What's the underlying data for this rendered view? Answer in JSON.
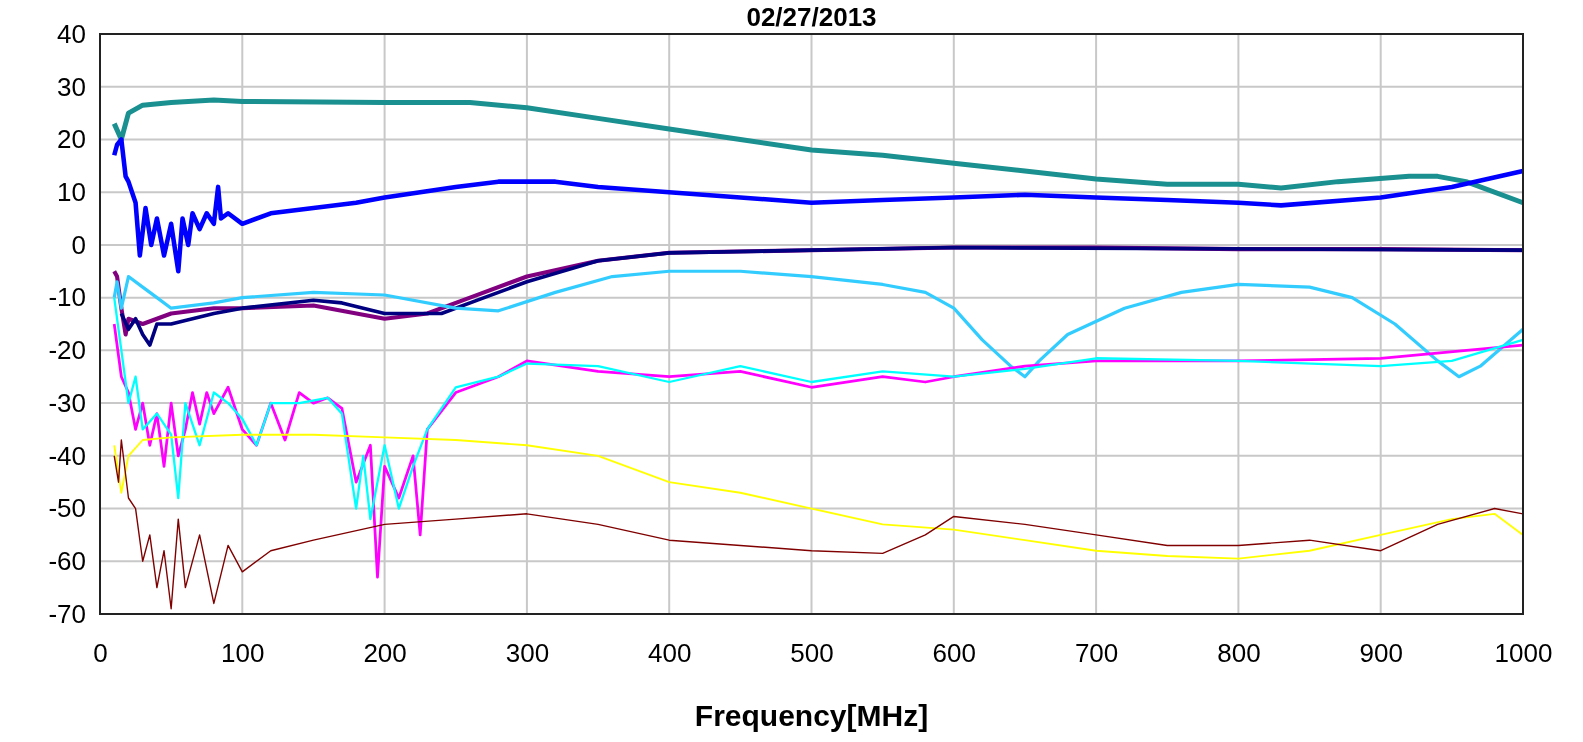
{
  "chart_data": {
    "type": "line",
    "title": "02/27/2013",
    "xlabel": "Frequency[MHz]",
    "xlim": [
      0,
      1000
    ],
    "xticks": [
      0,
      100,
      200,
      300,
      400,
      500,
      600,
      700,
      800,
      900,
      1000
    ],
    "ylim": [
      -70,
      40
    ],
    "yticks": [
      -70,
      -60,
      -50,
      -40,
      -30,
      -20,
      -10,
      0,
      10,
      20,
      30,
      40
    ],
    "grid": true,
    "marker": "none",
    "line_style": "solid",
    "series": [
      {
        "color": "#1a9090",
        "x": [
          10,
          15,
          20,
          30,
          50,
          80,
          100,
          200,
          260,
          300,
          350,
          400,
          450,
          500,
          550,
          600,
          650,
          700,
          750,
          800,
          830,
          870,
          920,
          940,
          960,
          1000
        ],
        "values": [
          23,
          20,
          25,
          26.5,
          27,
          27.5,
          27.2,
          27,
          27,
          26,
          24,
          22,
          20,
          18,
          17,
          15.5,
          14,
          12.5,
          11.5,
          11.5,
          10.8,
          12,
          13,
          13,
          12,
          8
        ]
      },
      {
        "color": "#0000ff",
        "x": [
          10,
          12,
          15,
          18,
          20,
          25,
          28,
          32,
          36,
          40,
          45,
          50,
          55,
          58,
          62,
          65,
          70,
          75,
          80,
          83,
          85,
          90,
          100,
          120,
          150,
          180,
          200,
          250,
          280,
          320,
          350,
          400,
          450,
          500,
          550,
          600,
          650,
          700,
          750,
          800,
          830,
          900,
          950,
          1000
        ],
        "values": [
          17,
          19,
          20,
          13,
          12,
          8,
          -2,
          7,
          0,
          5,
          -2,
          4,
          -5,
          5,
          0,
          6,
          3,
          6,
          4,
          11,
          5,
          6,
          4,
          6,
          7,
          8,
          9,
          11,
          12,
          12,
          11,
          10,
          9,
          8,
          8.5,
          9,
          9.5,
          9,
          8.5,
          8,
          7.5,
          9,
          11,
          14
        ]
      },
      {
        "color": "#800080",
        "x": [
          10,
          12,
          15,
          18,
          20,
          30,
          50,
          80,
          100,
          150,
          200,
          230,
          260,
          300,
          350,
          400,
          500,
          600,
          700,
          800,
          900,
          1000
        ],
        "values": [
          -5,
          -6,
          -12,
          -17,
          -14,
          -15,
          -13,
          -12,
          -12,
          -11.5,
          -14,
          -13,
          -10,
          -6,
          -3,
          -1.5,
          -1,
          -0.5,
          -0.5,
          -0.8,
          -0.8,
          -1
        ]
      },
      {
        "color": "#000080",
        "x": [
          15,
          20,
          25,
          30,
          35,
          40,
          50,
          80,
          100,
          150,
          170,
          200,
          240,
          270,
          300,
          350,
          400,
          500,
          600,
          1000
        ],
        "values": [
          -13,
          -16,
          -14,
          -17,
          -19,
          -15,
          -15,
          -13,
          -12,
          -10.5,
          -11,
          -13,
          -13,
          -10,
          -7,
          -3,
          -1.5,
          -1,
          -0.5,
          -1
        ]
      },
      {
        "color": "#33ccff",
        "x": [
          10,
          12,
          15,
          20,
          30,
          40,
          50,
          80,
          100,
          150,
          200,
          250,
          280,
          320,
          360,
          400,
          450,
          500,
          550,
          580,
          600,
          620,
          640,
          650,
          660,
          680,
          720,
          760,
          800,
          850,
          880,
          910,
          940,
          955,
          970,
          1000
        ],
        "values": [
          -10,
          -7,
          -12,
          -6,
          -8,
          -10,
          -12,
          -11,
          -10,
          -9,
          -9.5,
          -12,
          -12.5,
          -9,
          -6,
          -5,
          -5,
          -6,
          -7.5,
          -9,
          -12,
          -18,
          -23,
          -25,
          -22,
          -17,
          -12,
          -9,
          -7.5,
          -8,
          -10,
          -15,
          -22,
          -25,
          -23,
          -16
        ]
      },
      {
        "color": "#ff00ff",
        "x": [
          10,
          15,
          20,
          25,
          30,
          35,
          40,
          45,
          50,
          55,
          60,
          65,
          70,
          75,
          80,
          90,
          100,
          110,
          120,
          130,
          140,
          150,
          160,
          170,
          180,
          190,
          195,
          200,
          210,
          220,
          225,
          230,
          250,
          280,
          300,
          350,
          400,
          450,
          500,
          550,
          580,
          600,
          650,
          700,
          800,
          900,
          1000
        ],
        "values": [
          -15,
          -25,
          -28,
          -35,
          -30,
          -38,
          -32,
          -42,
          -30,
          -40,
          -35,
          -28,
          -34,
          -28,
          -32,
          -27,
          -35,
          -38,
          -30,
          -37,
          -28,
          -30,
          -29,
          -31,
          -45,
          -38,
          -63,
          -42,
          -48,
          -40,
          -55,
          -35,
          -28,
          -25,
          -22,
          -24,
          -25,
          -24,
          -27,
          -25,
          -26,
          -25,
          -23,
          -22,
          -22,
          -21.5,
          -19
        ]
      },
      {
        "color": "#00ffff",
        "x": [
          10,
          15,
          20,
          25,
          30,
          40,
          50,
          55,
          60,
          70,
          80,
          90,
          100,
          110,
          120,
          140,
          160,
          170,
          180,
          185,
          190,
          200,
          210,
          220,
          230,
          250,
          280,
          300,
          350,
          400,
          450,
          500,
          550,
          600,
          650,
          700,
          800,
          900,
          950,
          1000
        ],
        "values": [
          -10,
          -20,
          -30,
          -25,
          -35,
          -32,
          -36,
          -48,
          -30,
          -38,
          -28,
          -30,
          -33,
          -38,
          -30,
          -30,
          -29,
          -32,
          -50,
          -40,
          -52,
          -38,
          -50,
          -42,
          -35,
          -27,
          -25,
          -22.5,
          -23,
          -26,
          -23,
          -26,
          -24,
          -25,
          -23.5,
          -21.5,
          -22,
          -23,
          -22,
          -18
        ]
      },
      {
        "color": "#ffff00",
        "x": [
          10,
          15,
          20,
          30,
          50,
          100,
          150,
          200,
          250,
          300,
          350,
          400,
          450,
          500,
          550,
          600,
          650,
          700,
          750,
          800,
          850,
          900,
          950,
          980,
          1000
        ],
        "values": [
          -38,
          -47,
          -40,
          -37,
          -36.5,
          -36,
          -36,
          -36.5,
          -37,
          -38,
          -40,
          -45,
          -47,
          -50,
          -53,
          -54,
          -56,
          -58,
          -59,
          -59.5,
          -58,
          -55,
          -52,
          -51,
          -55
        ]
      },
      {
        "color": "#800000",
        "x": [
          10,
          13,
          15,
          20,
          25,
          30,
          35,
          40,
          45,
          50,
          55,
          60,
          70,
          80,
          90,
          100,
          120,
          150,
          200,
          250,
          300,
          350,
          400,
          450,
          500,
          550,
          580,
          600,
          650,
          700,
          750,
          800,
          850,
          900,
          940,
          980,
          1000
        ],
        "values": [
          -40,
          -45,
          -37,
          -48,
          -50,
          -60,
          -55,
          -65,
          -58,
          -69,
          -52,
          -65,
          -55,
          -68,
          -57,
          -62,
          -58,
          -56,
          -53,
          -52,
          -51,
          -53,
          -56,
          -57,
          -58,
          -58.5,
          -55,
          -51.5,
          -53,
          -55,
          -57,
          -57,
          -56,
          -58,
          -53,
          -50,
          -51
        ]
      }
    ]
  }
}
